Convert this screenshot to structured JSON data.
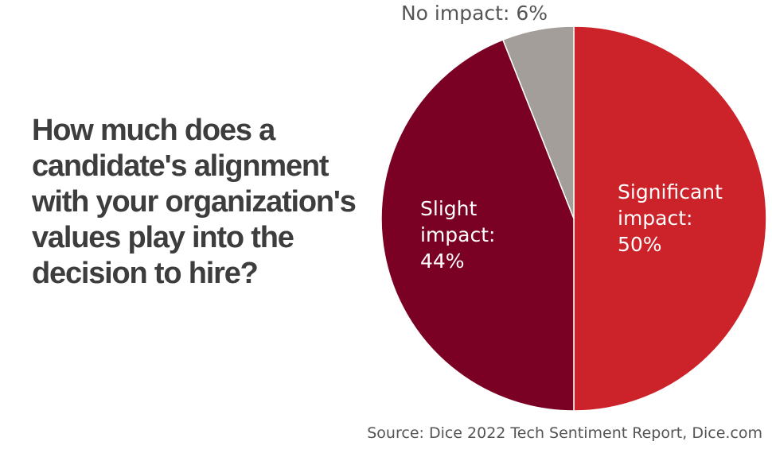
{
  "chart_data": {
    "type": "pie",
    "title": "How much does a candidate's alignment with your organization's values play into the decision to hire?",
    "source": "Source: Dice 2022 Tech Sentiment Report, Dice.com",
    "slices": [
      {
        "name": "Significant impact",
        "value": 50,
        "label_lines": [
          "Significant",
          "impact:",
          "50%"
        ],
        "color": "#cc2229",
        "label_color": "#ffffff"
      },
      {
        "name": "Slight impact",
        "value": 44,
        "label_lines": [
          "Slight",
          "impact:",
          "44%"
        ],
        "color": "#7a0024",
        "label_color": "#ffffff"
      },
      {
        "name": "No impact",
        "value": 6,
        "label_lines": [
          "No impact: 6%"
        ],
        "color": "#a39e99",
        "label_color": "#555555"
      }
    ],
    "start": "top",
    "direction": "clockwise"
  }
}
